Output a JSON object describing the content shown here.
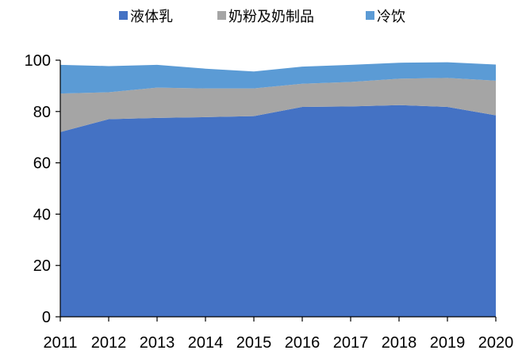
{
  "chart_data": {
    "type": "area",
    "stacked": true,
    "x": [
      "2011",
      "2012",
      "2013",
      "2014",
      "2015",
      "2016",
      "2017",
      "2018",
      "2019",
      "2020"
    ],
    "series": [
      {
        "name": "液体乳",
        "color": "#4472C4",
        "values": [
          72.0,
          77.0,
          77.5,
          77.8,
          78.2,
          81.8,
          82.0,
          82.5,
          81.8,
          78.5
        ]
      },
      {
        "name": "奶粉及奶制品",
        "color": "#A5A5A5",
        "values": [
          15.0,
          10.5,
          11.8,
          11.2,
          10.8,
          9.0,
          9.5,
          10.3,
          11.3,
          13.5
        ]
      },
      {
        "name": "冷饮",
        "color": "#5B9BD5",
        "values": [
          11.2,
          10.2,
          8.9,
          7.7,
          6.6,
          6.7,
          6.7,
          6.2,
          6.1,
          6.3
        ]
      }
    ],
    "ylim": [
      0,
      100
    ],
    "yticks": [
      "0",
      "20",
      "40",
      "60",
      "80",
      "100"
    ],
    "grid": false,
    "legend_position": "top"
  }
}
